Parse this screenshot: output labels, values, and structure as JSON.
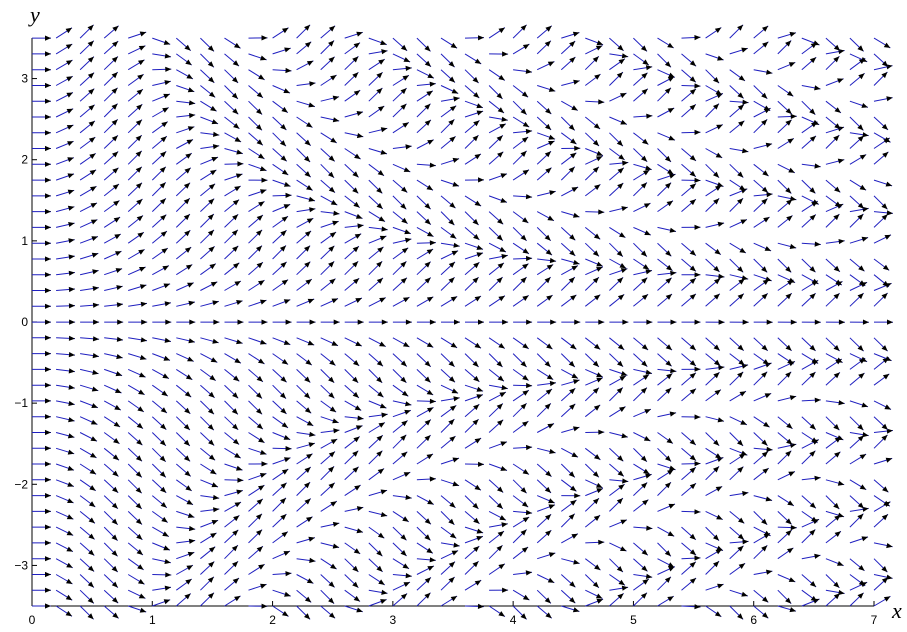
{
  "chart_data": {
    "type": "quiver",
    "field": "direction field of y' = sin(x*y)",
    "xlabel": "x",
    "ylabel": "y",
    "xlim": [
      0,
      7
    ],
    "ylim": [
      -3.5,
      3.5
    ],
    "xticks": [
      "0",
      "1",
      "2",
      "3",
      "4",
      "5",
      "6",
      "7"
    ],
    "yticks": [
      "−3",
      "−2",
      "−1",
      "0",
      "1",
      "2",
      "3"
    ],
    "grid": false,
    "x_samples": {
      "start": 0,
      "step": 0.2,
      "count": 36
    },
    "y_samples": {
      "start": -3.5,
      "step": 0.1944,
      "count": 37
    },
    "colors": {
      "shaft": "#1f1fbf",
      "head": "#000000",
      "axis": "#000000"
    }
  }
}
